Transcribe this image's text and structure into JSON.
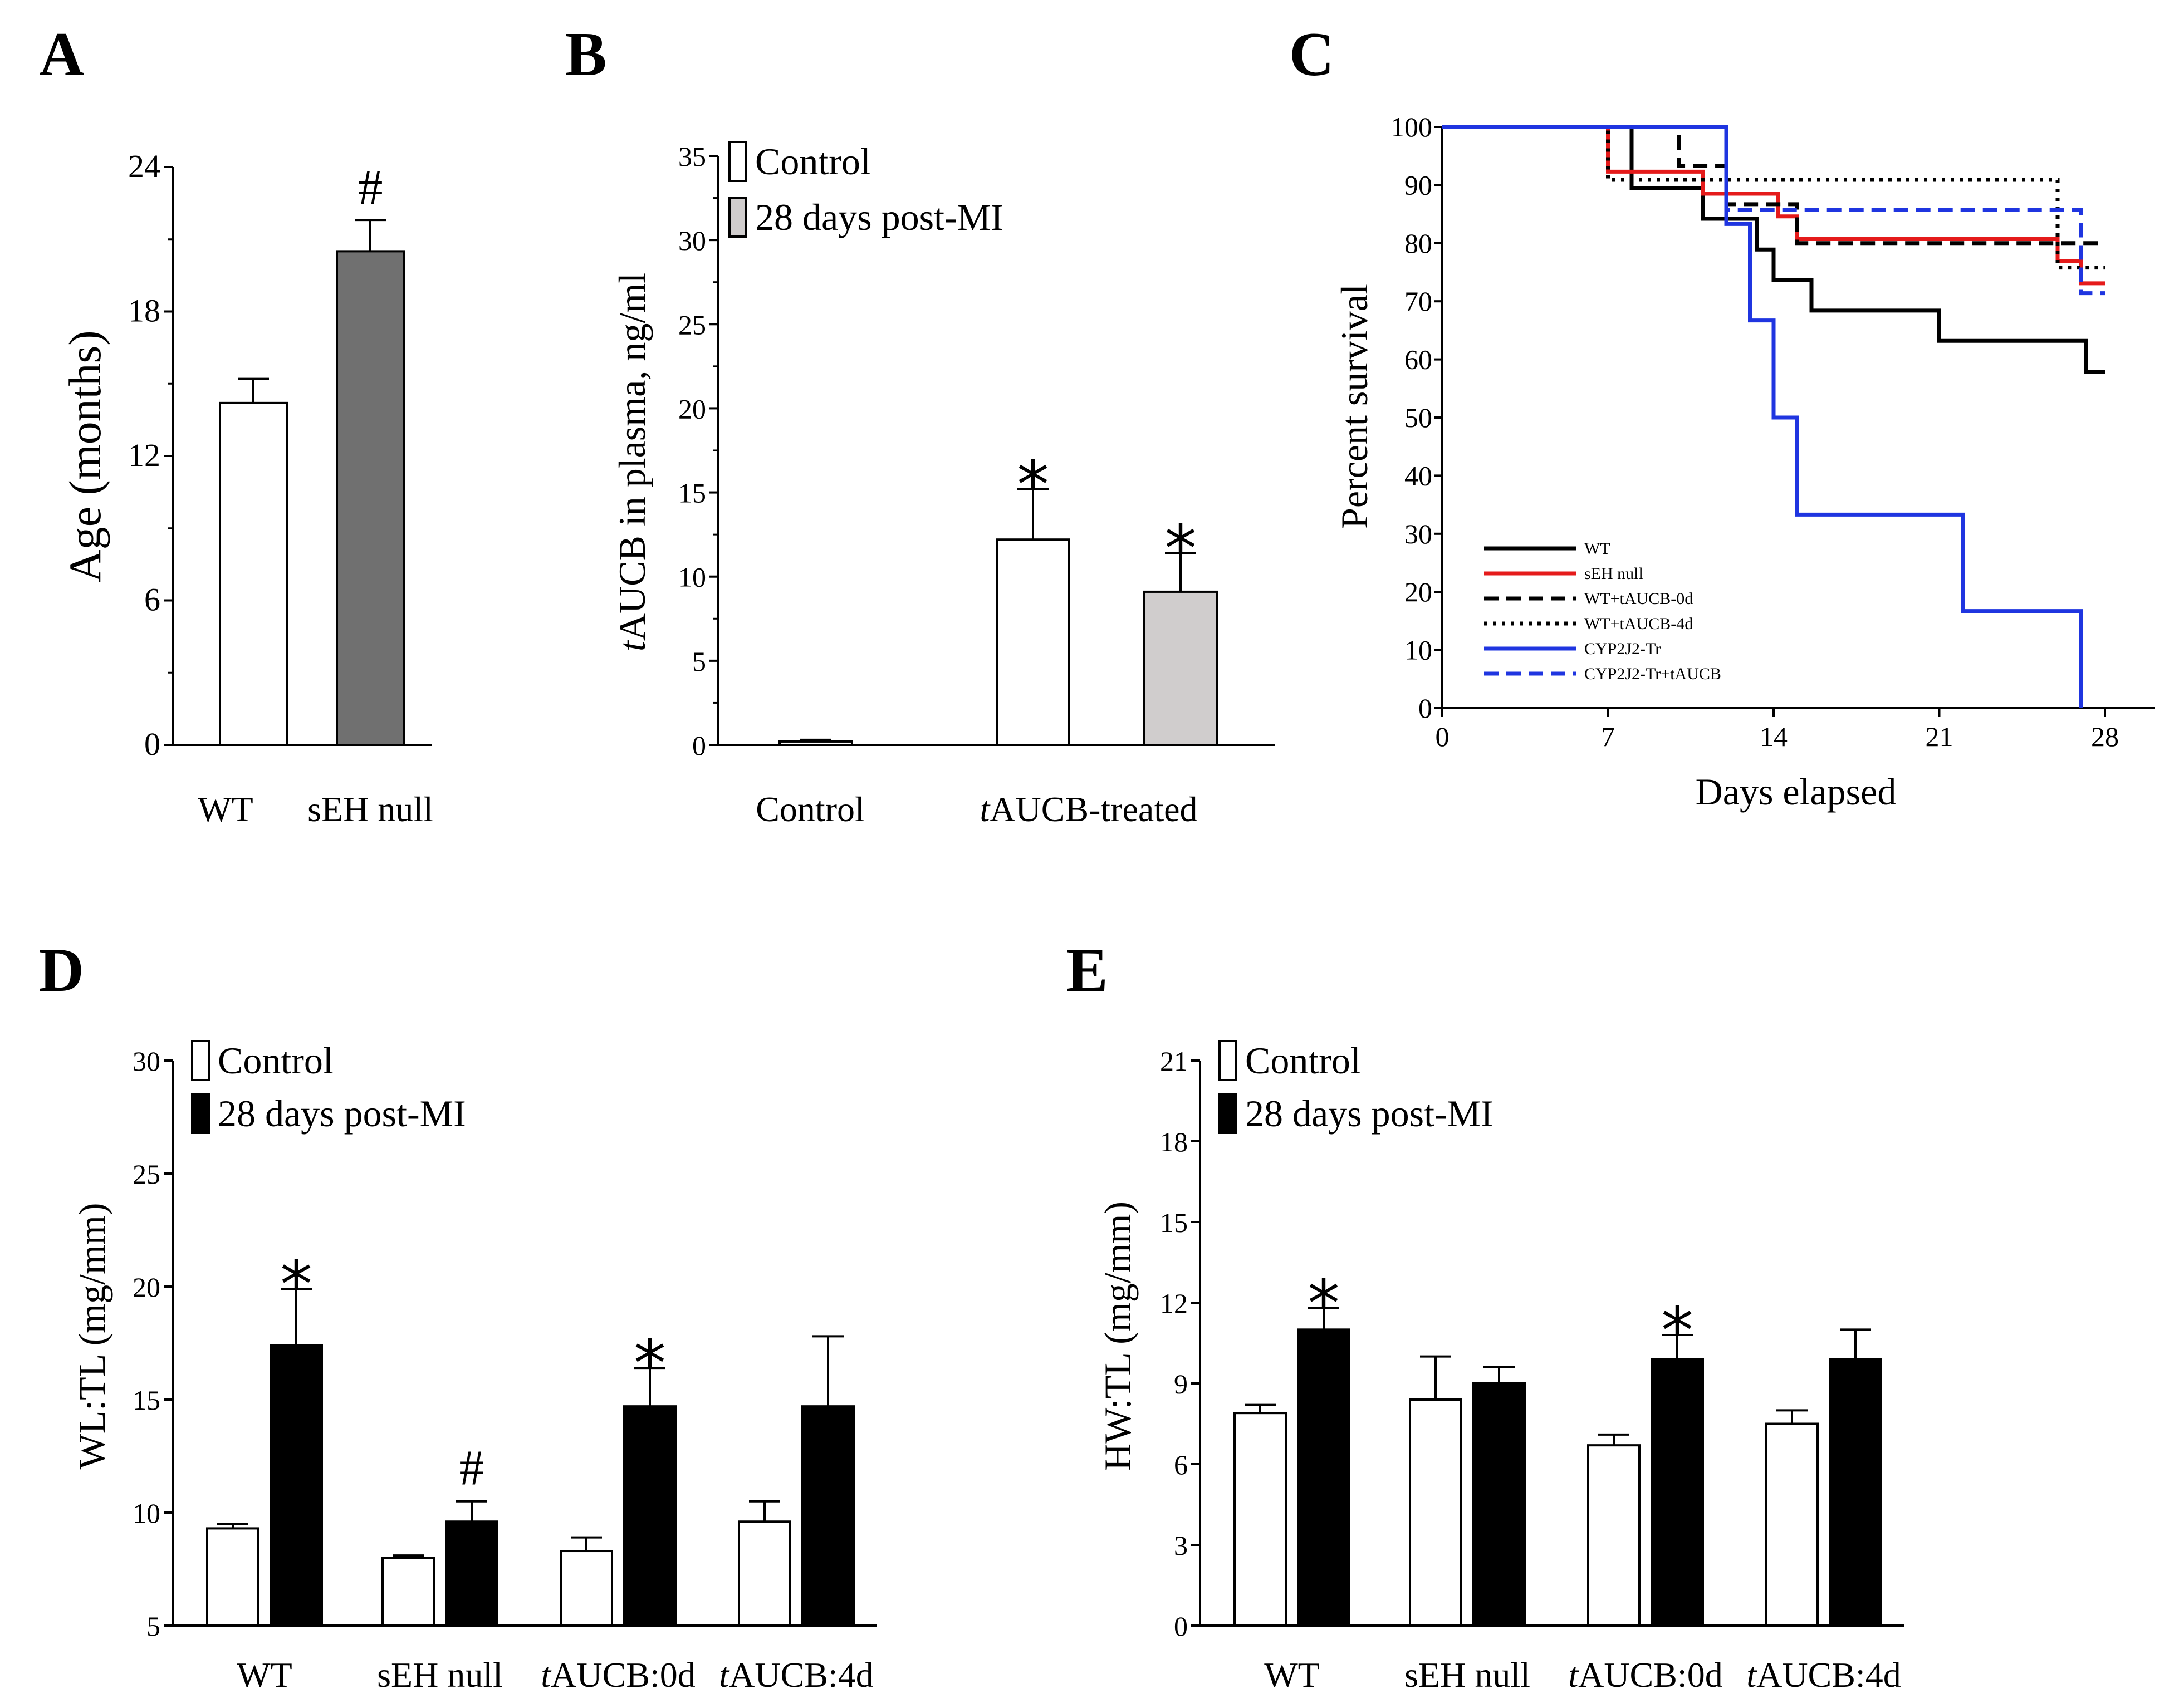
{
  "colors": {
    "control_bar": "#ffffff",
    "post_mi_bar_B": "#d0cdcd",
    "post_mi_bar": "#000000",
    "sEH_bar_A": "#707070",
    "WT": "#000000",
    "sEH_null": "#e51b1b",
    "CYP2J2": "#1f35e0"
  },
  "chart_data": [
    {
      "panel": "A",
      "type": "bar",
      "categories": [
        "WT",
        "sEH null"
      ],
      "values": [
        14.2,
        20.5
      ],
      "errors": [
        1.0,
        1.3
      ],
      "markers": [
        "",
        "#"
      ],
      "ylabel": "Age (months)",
      "ylim": [
        0,
        24
      ],
      "yticks": [
        0,
        6,
        12,
        18,
        24
      ],
      "ytick_labels": [
        "0",
        "6",
        "12",
        "18",
        "24"
      ]
    },
    {
      "panel": "B",
      "type": "bar",
      "categories": [
        "Control",
        "tAUCB-treated"
      ],
      "category_parts": [
        {
          "italic": "",
          "plain": "Control"
        },
        {
          "italic": "t",
          "plain": "AUCB-treated"
        }
      ],
      "series": [
        {
          "name": "Control",
          "values": [
            0.2,
            12.2
          ],
          "errors": [
            0.1,
            3.0
          ],
          "markers": [
            "",
            "*"
          ]
        },
        {
          "name": "28 days post-MI",
          "values": [
            null,
            9.1
          ],
          "errors": [
            null,
            2.3
          ],
          "markers": [
            "",
            "*"
          ]
        }
      ],
      "ylabel_italic": "t",
      "ylabel_rest": "AUCB in plasma, ng/ml",
      "ylim": [
        0,
        35
      ],
      "yticks": [
        0,
        5,
        10,
        15,
        20,
        25,
        30,
        35
      ],
      "ytick_labels": [
        "0",
        "5",
        "10",
        "15",
        "20",
        "25",
        "30",
        "35"
      ]
    },
    {
      "panel": "C",
      "type": "line",
      "step": true,
      "xlabel": "Days elapsed",
      "ylabel": "Percent survival",
      "xlim": [
        0,
        30
      ],
      "ylim": [
        0,
        100
      ],
      "xticks": [
        0,
        7,
        14,
        21,
        28
      ],
      "xtick_labels": [
        "0",
        "7",
        "14",
        "21",
        "28"
      ],
      "yticks": [
        0,
        10,
        20,
        30,
        40,
        50,
        60,
        70,
        80,
        90,
        100
      ],
      "ytick_labels": [
        "0",
        "10",
        "20",
        "30",
        "40",
        "50",
        "60",
        "70",
        "80",
        "90",
        "100"
      ],
      "series": [
        {
          "name": "WT",
          "color": "#000000",
          "dash": "solid",
          "x": [
            0,
            8,
            11,
            13.3,
            14,
            15.6,
            21,
            27.2,
            28
          ],
          "y": [
            100,
            89.5,
            84.2,
            78.9,
            73.7,
            68.4,
            63.2,
            57.9,
            57.9
          ]
        },
        {
          "name": "sEH null",
          "color": "#e51b1b",
          "dash": "solid",
          "x": [
            0,
            7,
            11,
            14.2,
            15,
            26,
            27,
            28
          ],
          "y": [
            100,
            92.3,
            88.5,
            84.6,
            80.8,
            76.9,
            73.1,
            73.1
          ]
        },
        {
          "name": "WT+tAUCB-0d",
          "color": "#000000",
          "dash": "dashed",
          "x": [
            0,
            10,
            12,
            15,
            28
          ],
          "y": [
            100,
            93.3,
            86.7,
            80,
            80
          ]
        },
        {
          "name": "WT+tAUCB-4d",
          "color": "#000000",
          "dash": "dotted",
          "x": [
            0,
            7,
            26,
            28
          ],
          "y": [
            100,
            90.9,
            75.8,
            75.8
          ]
        },
        {
          "name": "CYP2J2-Tr",
          "color": "#1f35e0",
          "dash": "solid",
          "x": [
            0,
            12,
            13,
            14,
            15,
            22,
            27,
            27
          ],
          "y": [
            100,
            83.3,
            66.7,
            50,
            33.3,
            16.7,
            0,
            0
          ]
        },
        {
          "name": "CYP2J2-Tr+tAUCB",
          "color": "#1f35e0",
          "dash": "dashed",
          "x": [
            0,
            12,
            27,
            28
          ],
          "y": [
            100,
            85.7,
            71.4,
            71.4
          ]
        }
      ]
    },
    {
      "panel": "D",
      "type": "bar",
      "categories": [
        "WT",
        "sEH null",
        "tAUCB:0d",
        "tAUCB:4d"
      ],
      "category_parts": [
        {
          "italic": "",
          "plain": "WT"
        },
        {
          "italic": "",
          "plain": "sEH null"
        },
        {
          "italic": "t",
          "plain": "AUCB:0d"
        },
        {
          "italic": "t",
          "plain": "AUCB:4d"
        }
      ],
      "series": [
        {
          "name": "Control",
          "values": [
            9.3,
            8.0,
            8.3,
            9.6
          ],
          "errors": [
            0.2,
            0.1,
            0.6,
            0.9
          ],
          "markers": [
            "",
            "",
            "",
            ""
          ]
        },
        {
          "name": "28 days post-MI",
          "values": [
            17.4,
            9.6,
            14.7,
            14.7
          ],
          "errors": [
            2.5,
            0.9,
            1.7,
            3.1
          ],
          "markers": [
            "*",
            "#",
            "*",
            ""
          ]
        }
      ],
      "ylabel": "WL:TL (mg/mm)",
      "ylim": [
        5,
        30
      ],
      "yticks": [
        5,
        10,
        15,
        20,
        25,
        30
      ],
      "ytick_labels": [
        "5",
        "10",
        "15",
        "20",
        "25",
        "30"
      ]
    },
    {
      "panel": "E",
      "type": "bar",
      "categories": [
        "WT",
        "sEH null",
        "tAUCB:0d",
        "tAUCB:4d"
      ],
      "category_parts": [
        {
          "italic": "",
          "plain": "WT"
        },
        {
          "italic": "",
          "plain": "sEH null"
        },
        {
          "italic": "t",
          "plain": "AUCB:0d"
        },
        {
          "italic": "t",
          "plain": "AUCB:4d"
        }
      ],
      "series": [
        {
          "name": "Control",
          "values": [
            7.9,
            8.4,
            6.7,
            7.5
          ],
          "errors": [
            0.3,
            1.6,
            0.4,
            0.5
          ],
          "markers": [
            "",
            "",
            "",
            ""
          ]
        },
        {
          "name": "28 days post-MI",
          "values": [
            11.0,
            9.0,
            9.9,
            9.9
          ],
          "errors": [
            0.8,
            0.6,
            0.9,
            1.1
          ],
          "markers": [
            "*",
            "",
            "*",
            ""
          ]
        }
      ],
      "ylabel": "HW:TL (mg/mm)",
      "ylim": [
        0,
        21
      ],
      "yticks": [
        0,
        3,
        6,
        9,
        12,
        15,
        18,
        21
      ],
      "ytick_labels": [
        "0",
        "3",
        "6",
        "9",
        "12",
        "15",
        "18",
        "21"
      ]
    }
  ],
  "panel_labels": [
    "A",
    "B",
    "C",
    "D",
    "E"
  ]
}
